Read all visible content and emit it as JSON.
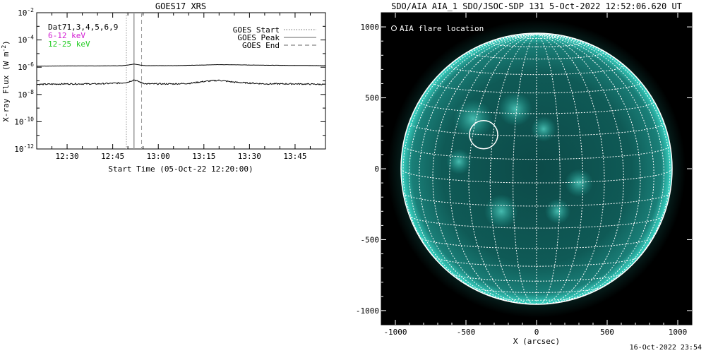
{
  "footer_timestamp": "16-Oct-2022 23:54",
  "colors": {
    "background": "#ffffff",
    "axis": "#000000",
    "channel_6_12": "#d21ed2",
    "channel_12_25": "#22cc22",
    "aia_teal": "#20b3a6",
    "aia_background": "#000000",
    "grid": "#ffffff"
  },
  "chart_data": [
    {
      "type": "line",
      "title": "GOES17 XRS",
      "xlabel": "Start Time (05-Oct-22 12:20:00)",
      "ylabel": "X-ray Flux (W m^-2)",
      "yscale": "log",
      "ylim": [
        1e-12,
        0.01
      ],
      "xlim_minutes_after_1220": [
        0,
        95
      ],
      "x_tick_labels": [
        "12:30",
        "12:45",
        "13:00",
        "13:15",
        "13:30",
        "13:45"
      ],
      "y_tick_labels": [
        "10^-12",
        "10^-10",
        "10^-8",
        "10^-6",
        "10^-4",
        "10^-2"
      ],
      "info_lines": [
        {
          "text": "Dat71,3,4,5,6,9",
          "color": "#000000"
        },
        {
          "text": "6-12 keV",
          "color": "#d21ed2"
        },
        {
          "text": "12-25 keV",
          "color": "#22cc22"
        }
      ],
      "legend": {
        "placement": "top-right",
        "entries": [
          {
            "label": "GOES Start",
            "style": "dotted"
          },
          {
            "label": "GOES Peak",
            "style": "solid"
          },
          {
            "label": "GOES End",
            "style": "dashed"
          }
        ]
      },
      "markers_minutes": {
        "start": 29.5,
        "peak": 32.0,
        "end": 34.5
      },
      "series": [
        {
          "channel": "long",
          "x": [
            0,
            10,
            20,
            28,
            30,
            32,
            34,
            36,
            45,
            55,
            60,
            65,
            75,
            85,
            95
          ],
          "y": [
            1.2e-06,
            1.25e-06,
            1.25e-06,
            1.3e-06,
            1.45e-06,
            1.7e-06,
            1.45e-06,
            1.3e-06,
            1.3e-06,
            1.45e-06,
            1.55e-06,
            1.5e-06,
            1.4e-06,
            1.35e-06,
            1.3e-06
          ]
        },
        {
          "channel": "short",
          "x": [
            0,
            10,
            20,
            28,
            30,
            32,
            34,
            36,
            45,
            50,
            55,
            60,
            65,
            75,
            85,
            95
          ],
          "y": [
            5.5e-08,
            6e-08,
            6e-08,
            7e-08,
            8e-08,
            1.2e-07,
            8e-08,
            6e-08,
            6e-08,
            6.5e-08,
            9e-08,
            1.1e-07,
            8e-08,
            6e-08,
            6e-08,
            5.5e-08
          ]
        }
      ]
    },
    {
      "type": "scatter",
      "title": "SDO/AIA AIA_1 SDO/JSOC-SDP 131  5-Oct-2022 12:52:06.620 UT",
      "xlabel": "X (arcsec)",
      "ylabel": "",
      "xlim": [
        -1100,
        1100
      ],
      "ylim": [
        -1100,
        1100
      ],
      "x_ticks": [
        -1000,
        -500,
        0,
        500,
        1000
      ],
      "y_ticks": [
        -1000,
        -500,
        0,
        500,
        1000
      ],
      "x_tick_labels": [
        "-1000",
        "-500",
        "0",
        "500",
        "1000"
      ],
      "y_tick_labels": [
        "-1000",
        "-500",
        "0",
        "500",
        "1000"
      ],
      "solar_radius_arcsec": 960,
      "legend": {
        "placement": "top-left",
        "entries": [
          {
            "label": "AIA flare location",
            "marker": "circle"
          }
        ]
      },
      "flare_location": {
        "x": -375,
        "y": 240,
        "radius_arcsec": 100
      }
    }
  ]
}
